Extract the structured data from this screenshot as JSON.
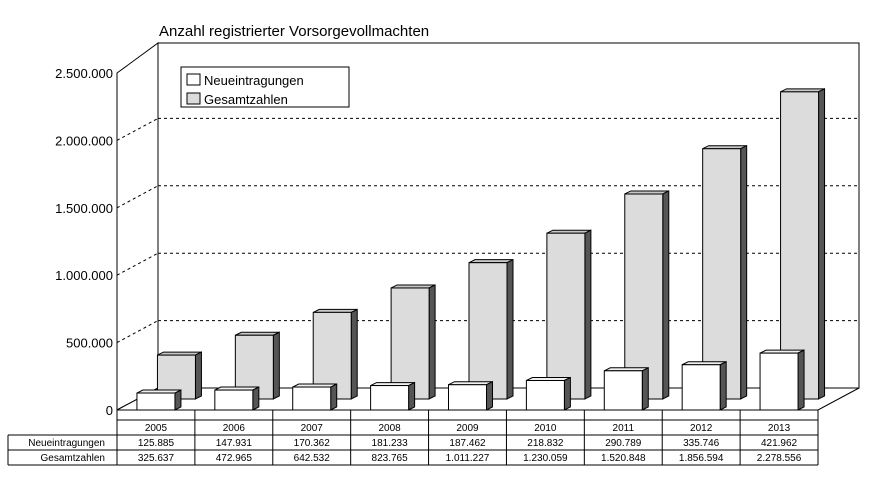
{
  "chart_data": {
    "type": "bar",
    "title": "Anzahl registrierter Vorsorgevollmachten",
    "categories": [
      "2005",
      "2006",
      "2007",
      "2008",
      "2009",
      "2010",
      "2011",
      "2012",
      "2013"
    ],
    "series": [
      {
        "name": "Neueintragungen",
        "color": "#ffffff",
        "values": [
          125885,
          147931,
          170362,
          181233,
          187462,
          218832,
          290789,
          335746,
          421962
        ],
        "labels": [
          "125.885",
          "147.931",
          "170.362",
          "181.233",
          "187.462",
          "218.832",
          "290.789",
          "335.746",
          "421.962"
        ]
      },
      {
        "name": "Gesamtzahlen",
        "color": "#dcdcdc",
        "values": [
          325637,
          472965,
          642532,
          823765,
          1011227,
          1230059,
          1520848,
          1856594,
          2278556
        ],
        "labels": [
          "325.637",
          "472.965",
          "642.532",
          "823.765",
          "1.011.227",
          "1.230.059",
          "1.520.848",
          "1.856.594",
          "2.278.556"
        ]
      }
    ],
    "yticks": [
      0,
      500000,
      1000000,
      1500000,
      2000000,
      2500000
    ],
    "ytick_labels": [
      "0",
      "500.000",
      "1.000.000",
      "1.500.000",
      "2.000.000",
      "2.500.000"
    ],
    "ylim": [
      0,
      2500000
    ],
    "legend_position": "top-left",
    "grid": true
  }
}
